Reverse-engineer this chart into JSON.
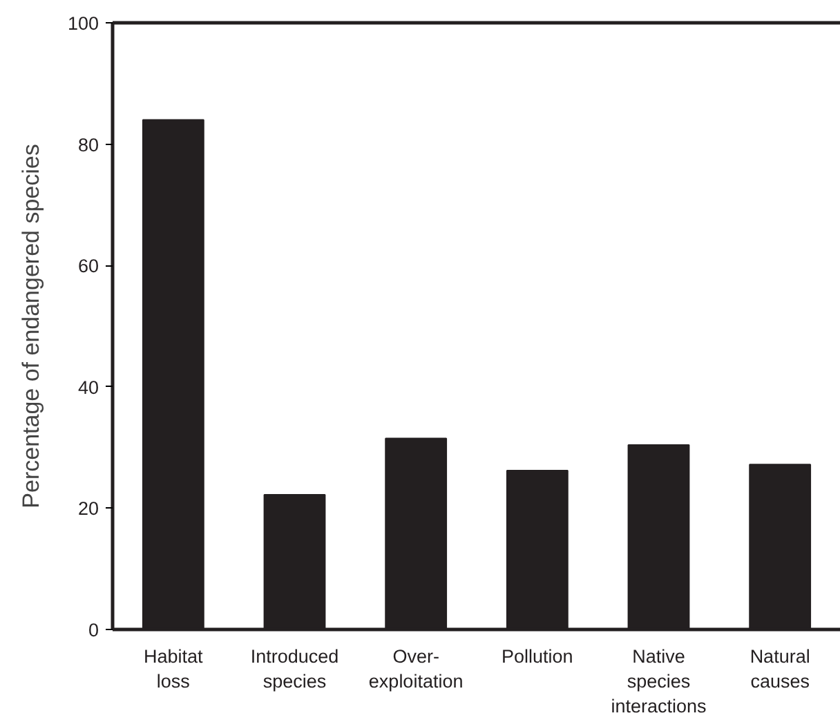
{
  "chart_data": {
    "type": "bar",
    "ylabel": "Percentage of endangered species",
    "categories": [
      "Habitat\nloss",
      "Introduced\nspecies",
      "Over-\nexploitation",
      "Pollution",
      "Native\nspecies\ninteractions",
      "Natural\ncauses"
    ],
    "values": [
      84,
      22.2,
      31.5,
      26.2,
      30.4,
      27.2
    ],
    "color": "#231f20",
    "ylim": [
      0,
      100
    ],
    "yticks": [
      0,
      20,
      40,
      60,
      80,
      100
    ],
    "grid": false
  }
}
